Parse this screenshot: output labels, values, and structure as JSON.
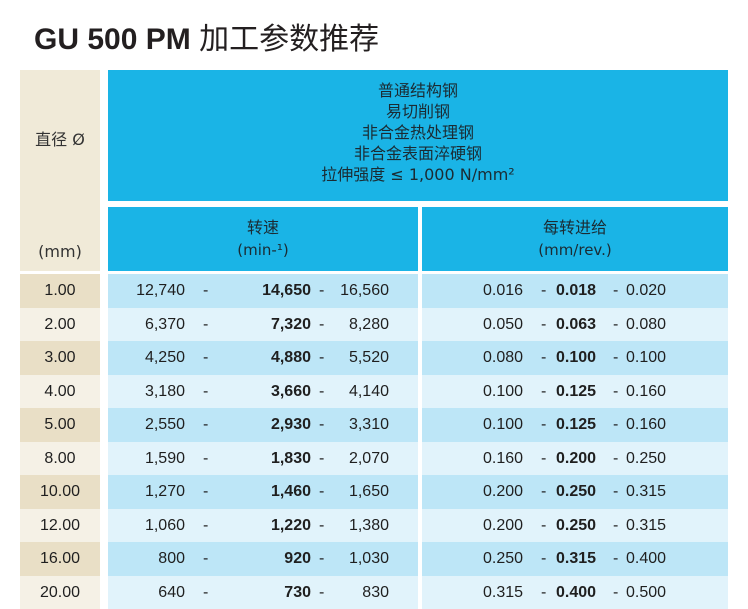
{
  "title": {
    "bold": "GU 500 PM",
    "rest": "加工参数推荐"
  },
  "header": {
    "diameter_label": "直径 Ø",
    "diameter_unit": "(mm)",
    "materials": [
      "普通结构钢",
      "易切削钢",
      "非合金热处理钢",
      "非合金表面淬硬钢",
      "拉伸强度 ≤ 1,000 N/mm²"
    ],
    "speed_label": "转速",
    "speed_unit": "(min-¹)",
    "feed_label": "每转进给",
    "feed_unit": "(mm/rev.)"
  },
  "rows": [
    {
      "dia": "1.00",
      "s_min": "12,740",
      "s_nom": "14,650",
      "s_max": "16,560",
      "f_min": "0.016",
      "f_nom": "0.018",
      "f_max": "0.020"
    },
    {
      "dia": "2.00",
      "s_min": "6,370",
      "s_nom": "7,320",
      "s_max": "8,280",
      "f_min": "0.050",
      "f_nom": "0.063",
      "f_max": "0.080"
    },
    {
      "dia": "3.00",
      "s_min": "4,250",
      "s_nom": "4,880",
      "s_max": "5,520",
      "f_min": "0.080",
      "f_nom": "0.100",
      "f_max": "0.100"
    },
    {
      "dia": "4.00",
      "s_min": "3,180",
      "s_nom": "3,660",
      "s_max": "4,140",
      "f_min": "0.100",
      "f_nom": "0.125",
      "f_max": "0.160"
    },
    {
      "dia": "5.00",
      "s_min": "2,550",
      "s_nom": "2,930",
      "s_max": "3,310",
      "f_min": "0.100",
      "f_nom": "0.125",
      "f_max": "0.160"
    },
    {
      "dia": "8.00",
      "s_min": "1,590",
      "s_nom": "1,830",
      "s_max": "2,070",
      "f_min": "0.160",
      "f_nom": "0.200",
      "f_max": "0.250"
    },
    {
      "dia": "10.00",
      "s_min": "1,270",
      "s_nom": "1,460",
      "s_max": "1,650",
      "f_min": "0.200",
      "f_nom": "0.250",
      "f_max": "0.315"
    },
    {
      "dia": "12.00",
      "s_min": "1,060",
      "s_nom": "1,220",
      "s_max": "1,380",
      "f_min": "0.200",
      "f_nom": "0.250",
      "f_max": "0.315"
    },
    {
      "dia": "16.00",
      "s_min": "800",
      "s_nom": "920",
      "s_max": "1,030",
      "f_min": "0.250",
      "f_nom": "0.315",
      "f_max": "0.400"
    },
    {
      "dia": "20.00",
      "s_min": "640",
      "s_nom": "730",
      "s_max": "830",
      "f_min": "0.315",
      "f_nom": "0.400",
      "f_max": "0.500"
    }
  ],
  "separator": "-",
  "colors": {
    "header_blue": "#1ab4e6",
    "row_blue_dark": "#bde6f7",
    "row_blue_light": "#e1f3fb",
    "row_beige_dark": "#e9dfc6",
    "row_beige_light": "#f5f1e6"
  }
}
